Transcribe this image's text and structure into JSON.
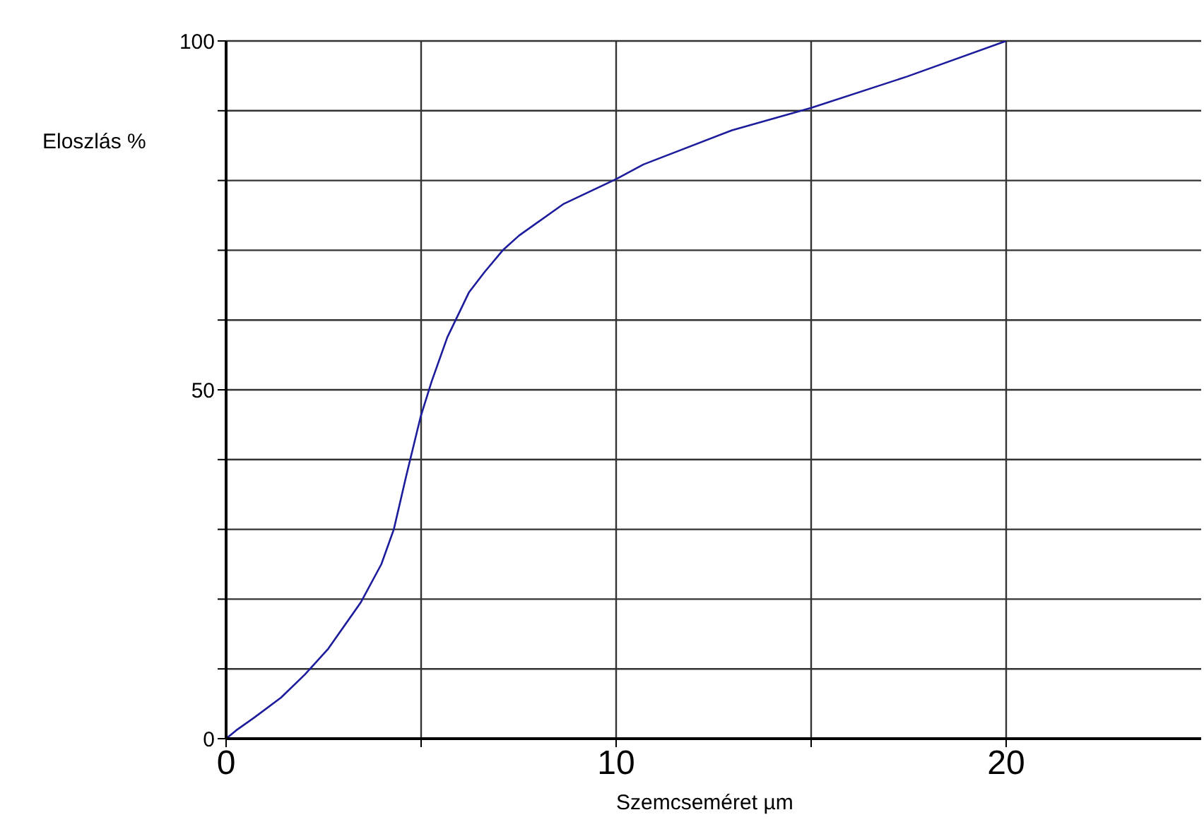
{
  "chart_data": {
    "type": "line",
    "xlabel": "Szemcseméret µm",
    "ylabel": "Eloszlás %",
    "x": [
      0,
      0.26,
      0.74,
      1.41,
      2.02,
      2.62,
      3.45,
      3.98,
      4.3,
      4.62,
      4.99,
      5.27,
      5.67,
      6.23,
      6.63,
      7.11,
      7.51,
      8.64,
      10,
      10.7,
      12.97,
      15,
      17.46,
      20
    ],
    "series": [
      {
        "color": "#1c1c9c",
        "values": [
          0,
          1.2,
          3.1,
          5.9,
          9.2,
          12.9,
          19.5,
          25,
          30,
          37.7,
          46.2,
          51.2,
          57.5,
          64,
          66.9,
          70.1,
          72.1,
          76.6,
          80.2,
          82.3,
          87.2,
          90.4,
          94.9,
          100
        ]
      }
    ],
    "xlim": [
      0,
      25
    ],
    "xticks": [
      0,
      {
        "value": 5,
        "label": null
      },
      10,
      {
        "value": 15,
        "label": null
      },
      20
    ],
    "ylim": [
      0,
      100
    ],
    "yticks": [
      0,
      {
        "value": 10,
        "label": null
      },
      {
        "value": 20,
        "label": null
      },
      {
        "value": 30,
        "label": null
      },
      {
        "value": 40,
        "label": null
      },
      50,
      {
        "value": 60,
        "label": null
      },
      {
        "value": 70,
        "label": null
      },
      {
        "value": 80,
        "label": null
      },
      {
        "value": 90,
        "label": null
      },
      100
    ],
    "grid": true
  }
}
